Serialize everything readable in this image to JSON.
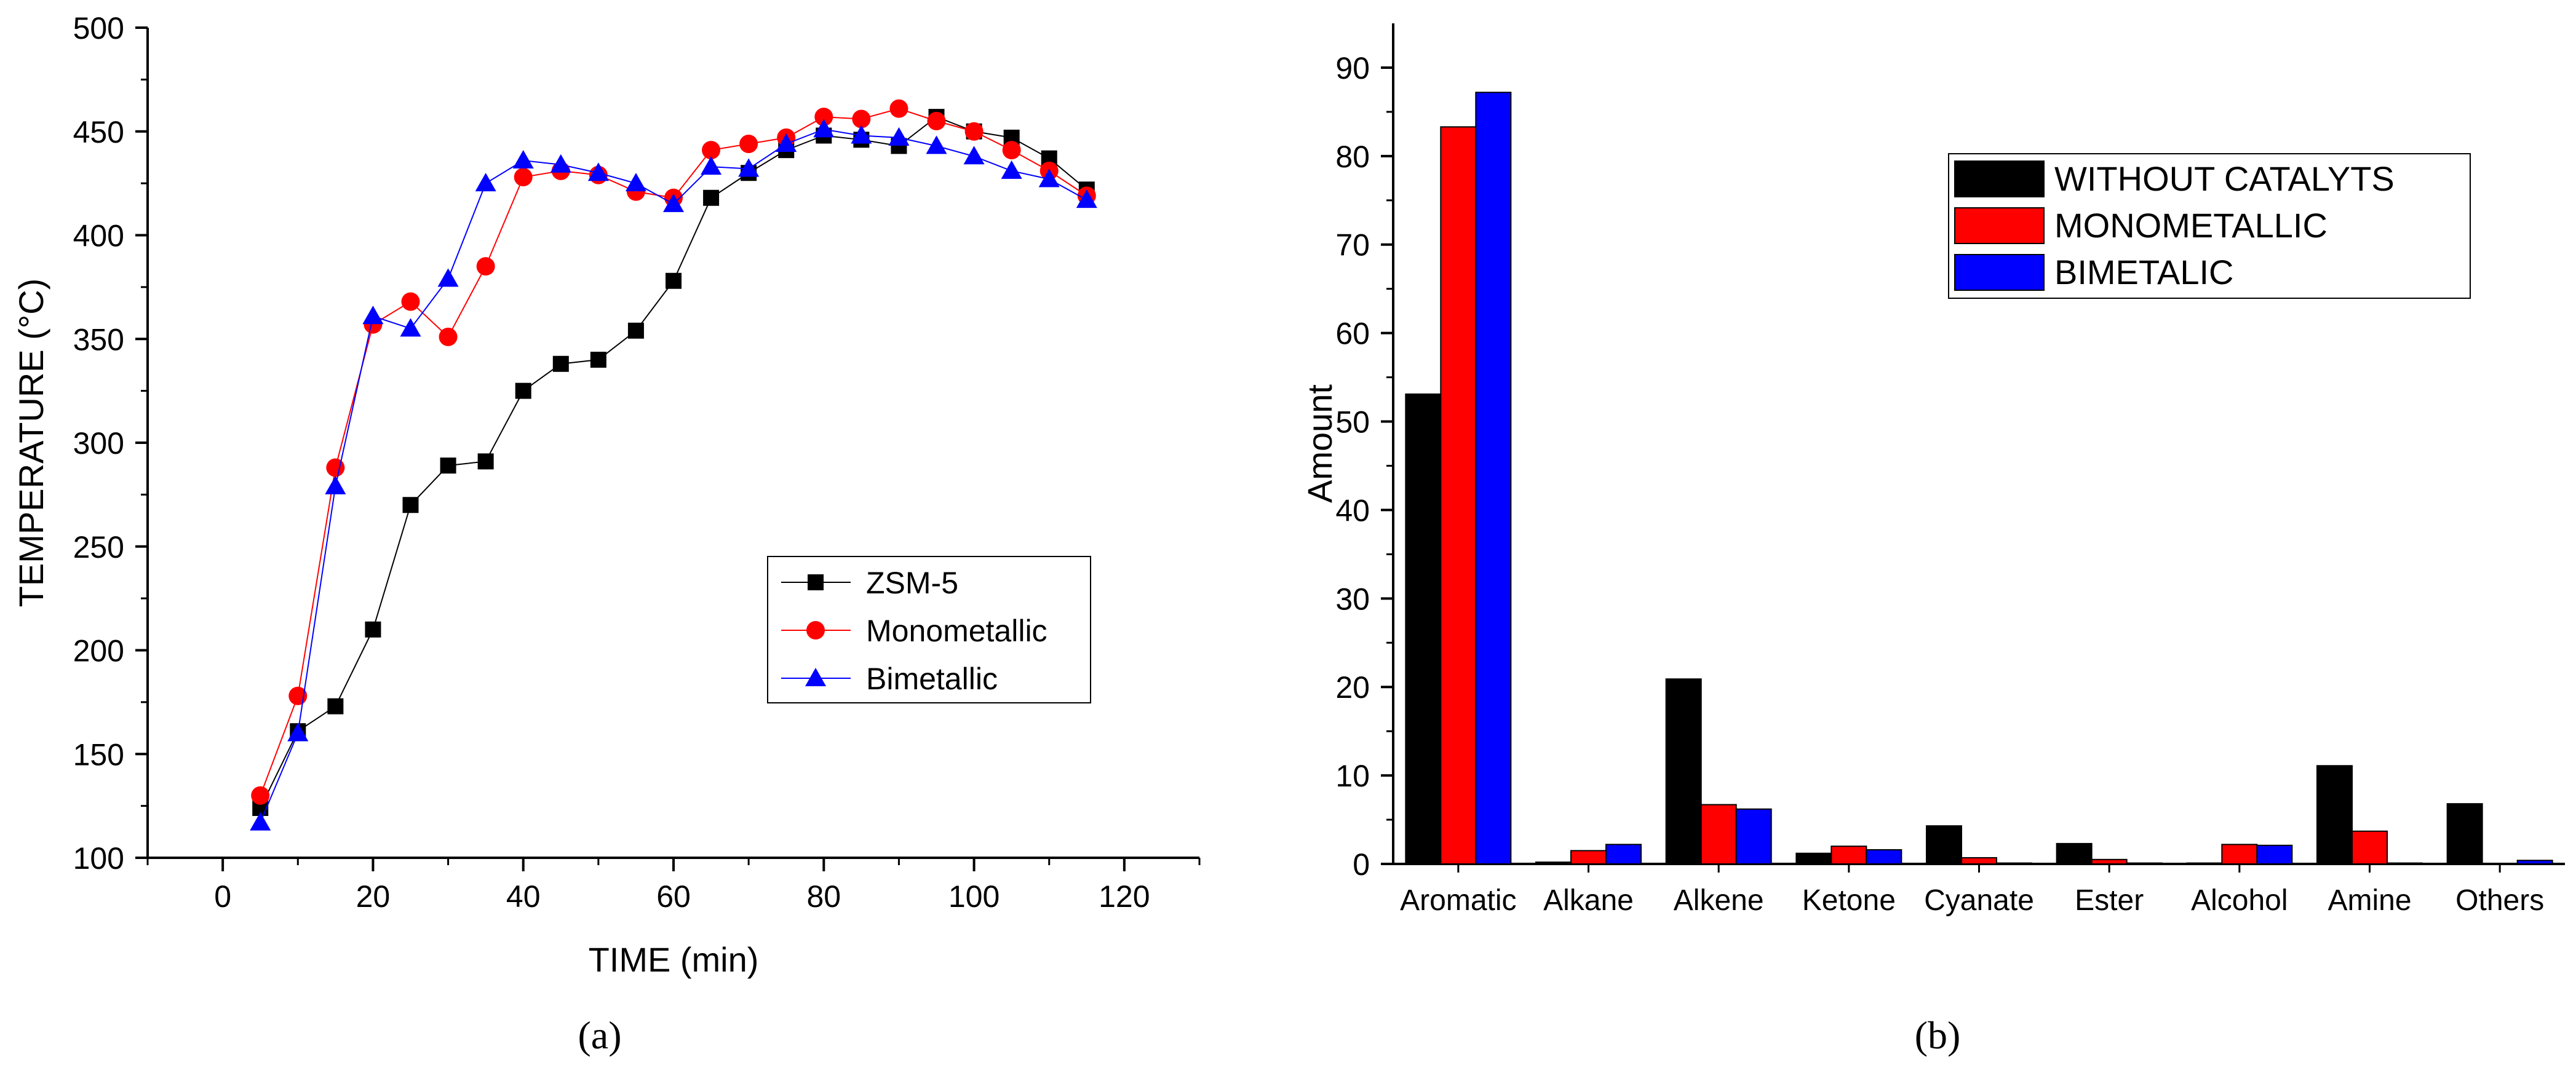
{
  "panel_a_caption": "(a)",
  "panel_b_caption": "(b)",
  "chart_data": [
    {
      "type": "line",
      "panel": "a",
      "xlabel": "TIME (min)",
      "ylabel": "TEMPERATURE (°C)",
      "xlim": [
        -10,
        130
      ],
      "ylim": [
        100,
        500
      ],
      "xticks": [
        0,
        20,
        40,
        60,
        80,
        100,
        120
      ],
      "yticks": [
        100,
        150,
        200,
        250,
        300,
        350,
        400,
        450,
        500
      ],
      "x": [
        5,
        10,
        15,
        20,
        25,
        30,
        35,
        40,
        45,
        50,
        55,
        60,
        65,
        70,
        75,
        80,
        85,
        90,
        95,
        100,
        105,
        110,
        115
      ],
      "series": [
        {
          "name": "ZSM-5",
          "color": "#000000",
          "marker": "square",
          "values": [
            124,
            161,
            173,
            210,
            270,
            289,
            291,
            325,
            338,
            340,
            354,
            378,
            418,
            430,
            441,
            448,
            446,
            443,
            457,
            450,
            447,
            437,
            422
          ]
        },
        {
          "name": "Monometallic",
          "color": "#ff0000",
          "marker": "circle",
          "values": [
            130,
            178,
            288,
            357,
            368,
            351,
            385,
            428,
            431,
            429,
            421,
            418,
            441,
            444,
            447,
            457,
            456,
            461,
            455,
            450,
            441,
            431,
            419
          ]
        },
        {
          "name": "Bimetallic",
          "color": "#0000ff",
          "marker": "triangle",
          "values": [
            117,
            160,
            279,
            361,
            355,
            379,
            425,
            436,
            434,
            430,
            425,
            415,
            433,
            432,
            444,
            451,
            448,
            447,
            443,
            438,
            431,
            427,
            417
          ]
        }
      ],
      "legend": "center-right"
    },
    {
      "type": "bar",
      "panel": "b",
      "xlabel": "",
      "ylabel": "Amount",
      "ylim": [
        0,
        95
      ],
      "yticks": [
        0,
        10,
        20,
        30,
        40,
        50,
        60,
        70,
        80,
        90
      ],
      "categories": [
        "Aromatic",
        "Alkane",
        "Alkene",
        "Ketone",
        "Cyanate",
        "Ester",
        "Alcohol",
        "Amine",
        "Others"
      ],
      "series": [
        {
          "name": "WITHOUT CATALYTS",
          "color": "#000000",
          "values": [
            53.1,
            0.2,
            20.9,
            1.2,
            4.3,
            2.3,
            0.1,
            11.1,
            6.8
          ]
        },
        {
          "name": "MONOMETALLIC",
          "color": "#ff0000",
          "values": [
            83.3,
            1.5,
            6.7,
            2.0,
            0.7,
            0.5,
            2.2,
            3.7,
            0.0
          ]
        },
        {
          "name": "BIMETALIC",
          "color": "#0000ff",
          "values": [
            87.2,
            2.2,
            6.2,
            1.6,
            0.1,
            0.1,
            2.1,
            0.1,
            0.4
          ]
        }
      ],
      "legend": "top-right"
    }
  ]
}
